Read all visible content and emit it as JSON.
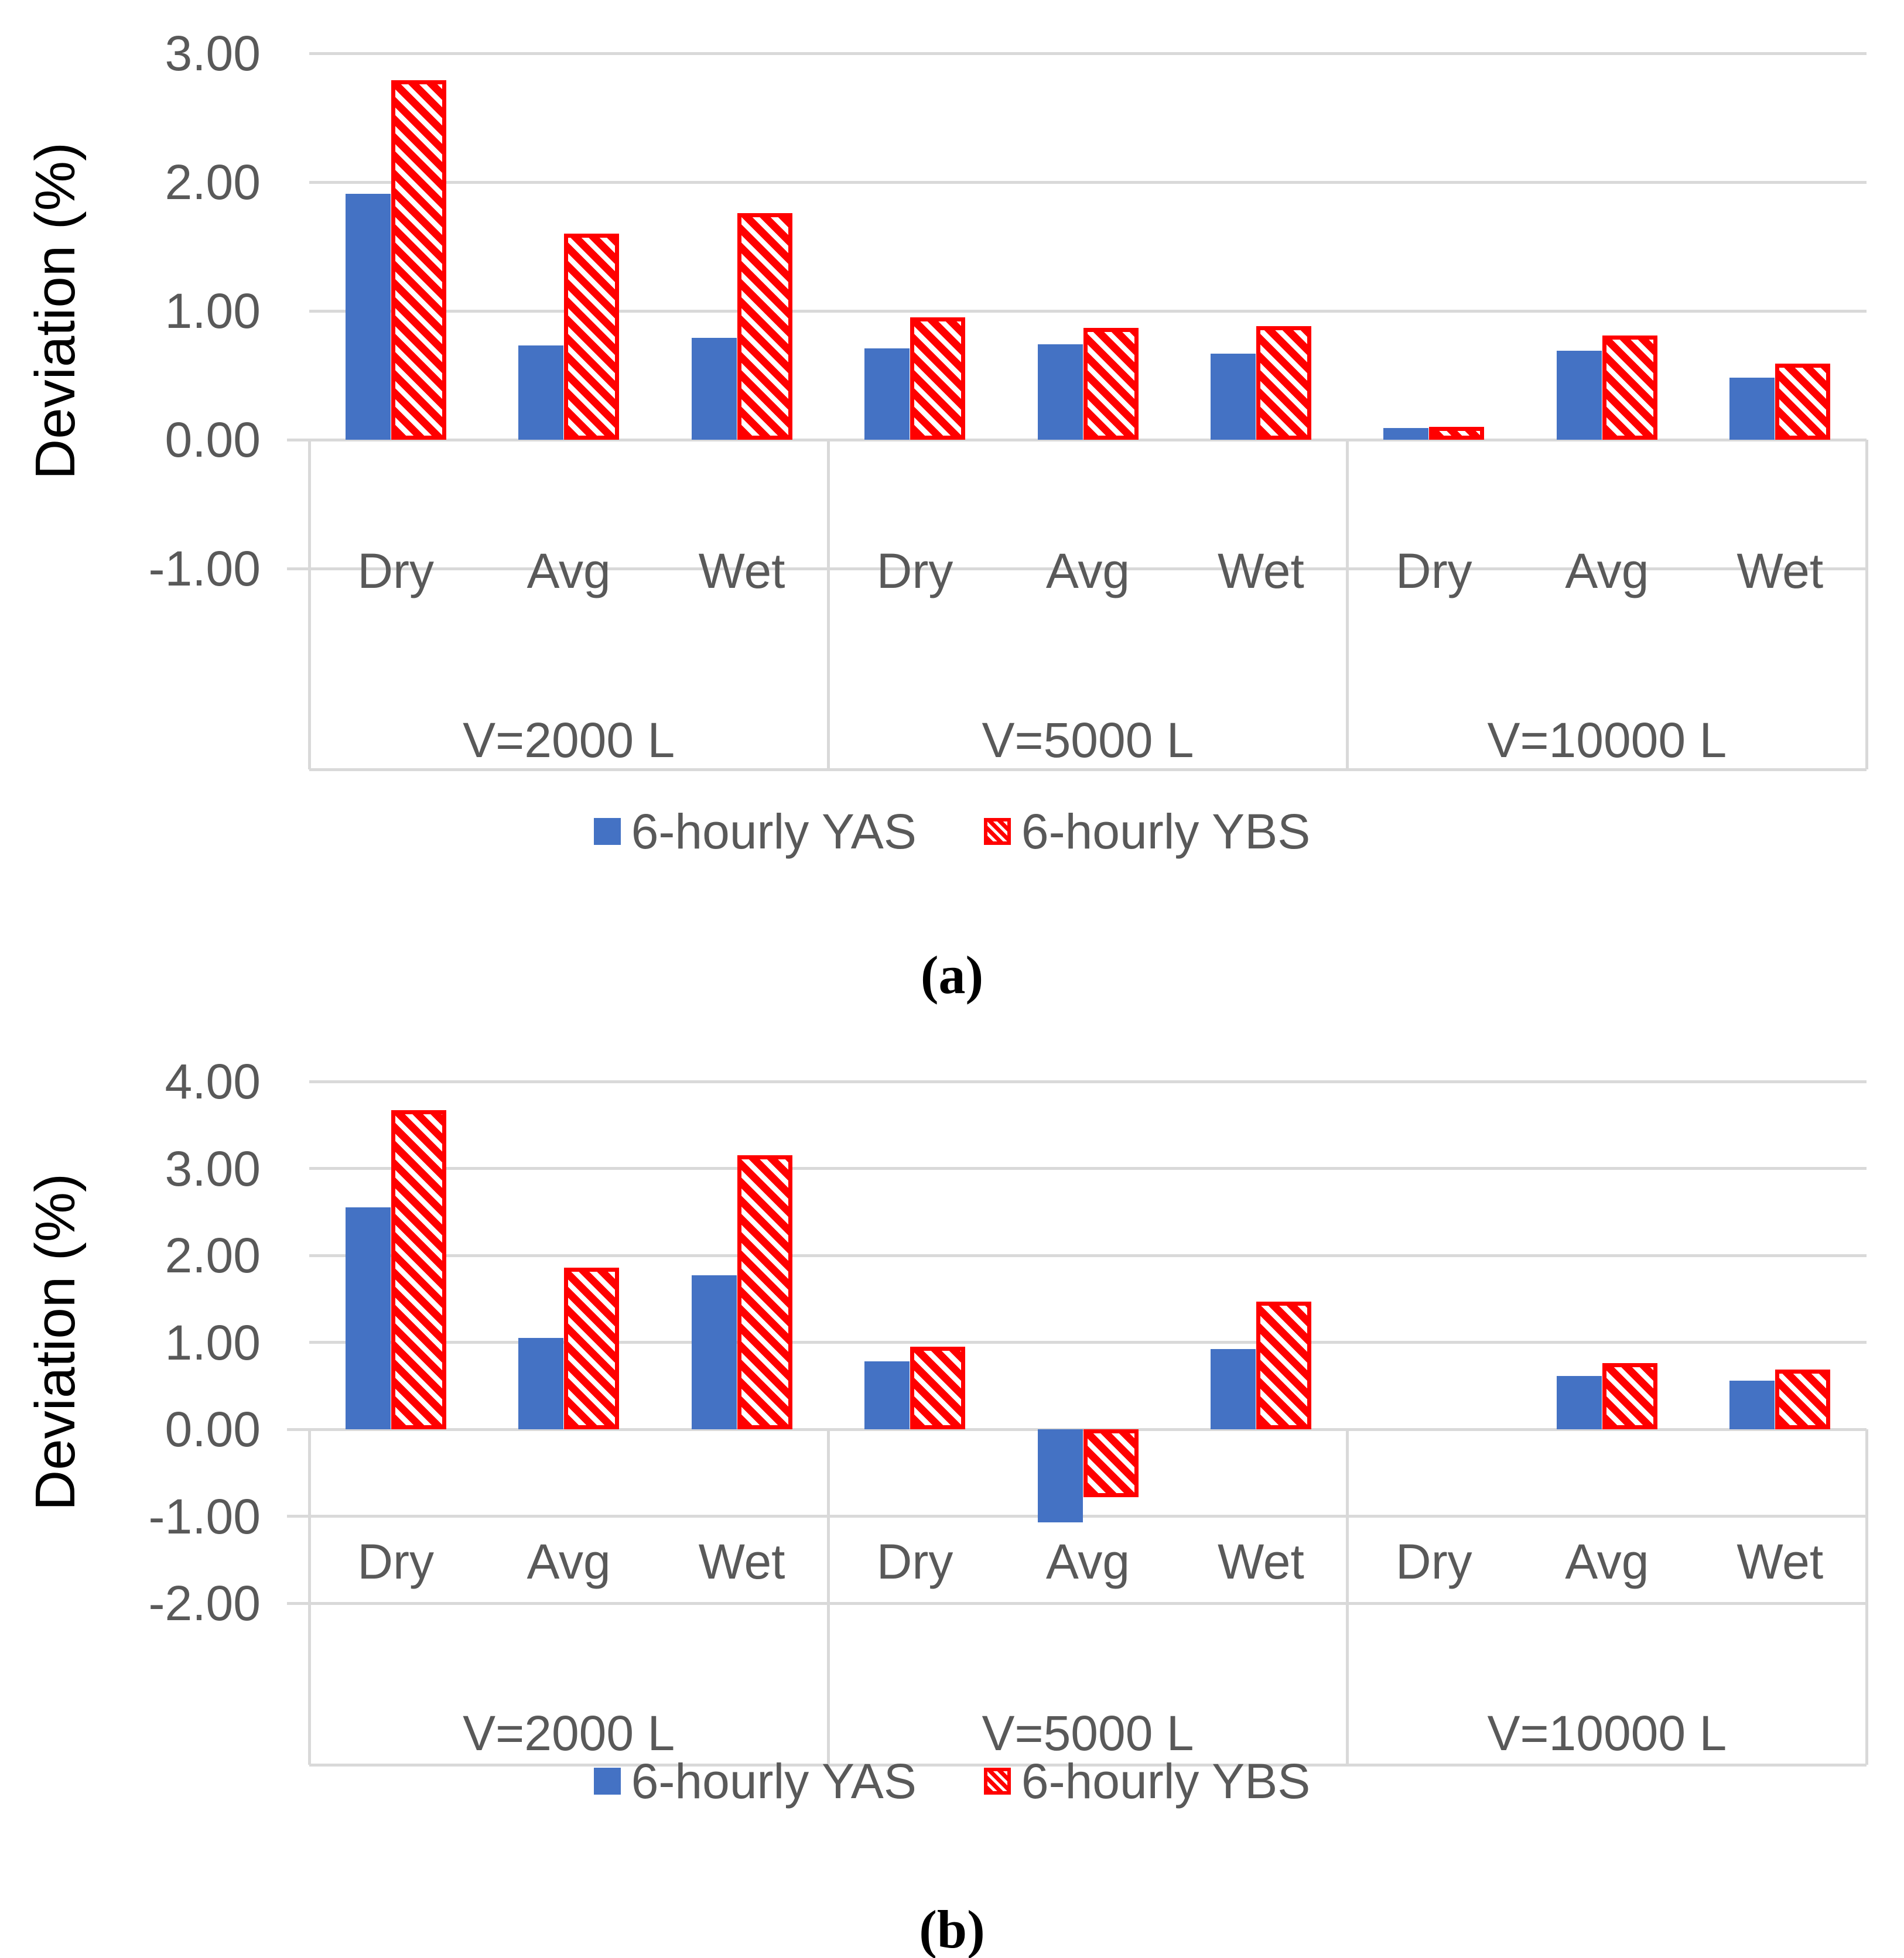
{
  "colors": {
    "yas": "#4472C4",
    "ybs": "#FF0000",
    "grid": "#D9D9D9",
    "axis_text": "#595959",
    "ylabel_text": "#000000",
    "background": "#FFFFFF"
  },
  "chart_data": [
    {
      "type": "bar",
      "panel": "a",
      "caption": "(a)",
      "ylabel": "Deviation (%)",
      "ylim": [
        -1,
        3
      ],
      "ytick_labels": [
        "3.00",
        "2.00",
        "1.00",
        "0.00",
        "-1.00"
      ],
      "ytick_values": [
        3,
        2,
        1,
        0,
        -1
      ],
      "grid": true,
      "legend_position": "bottom",
      "group_labels": [
        "V=2000 L",
        "V=5000 L",
        "V=10000 L"
      ],
      "category_labels": [
        "Dry",
        "Avg",
        "Wet"
      ],
      "series": [
        {
          "name": "6-hourly YAS",
          "color": "#4472C4",
          "pattern": "solid",
          "values": [
            [
              1.91,
              0.73,
              0.79
            ],
            [
              0.71,
              0.74,
              0.67
            ],
            [
              0.09,
              0.69,
              0.48
            ]
          ]
        },
        {
          "name": "6-hourly YBS",
          "color": "#FF0000",
          "pattern": "diagonal-hatch",
          "values": [
            [
              2.79,
              1.6,
              1.76
            ],
            [
              0.95,
              0.87,
              0.88
            ],
            [
              0.1,
              0.81,
              0.59
            ]
          ]
        }
      ]
    },
    {
      "type": "bar",
      "panel": "b",
      "caption": "(b)",
      "ylabel": "Deviation (%)",
      "ylim": [
        -2,
        4
      ],
      "ytick_labels": [
        "4.00",
        "3.00",
        "2.00",
        "1.00",
        "0.00",
        "-1.00",
        "-2.00"
      ],
      "ytick_values": [
        4,
        3,
        2,
        1,
        0,
        -1,
        -2
      ],
      "grid": true,
      "legend_position": "bottom",
      "group_labels": [
        "V=2000 L",
        "V=5000 L",
        "V=10000 L"
      ],
      "category_labels": [
        "Dry",
        "Avg",
        "Wet"
      ],
      "series": [
        {
          "name": "6-hourly YAS",
          "color": "#4472C4",
          "pattern": "solid",
          "values": [
            [
              2.55,
              1.05,
              1.77
            ],
            [
              0.78,
              -1.07,
              0.92
            ],
            [
              0.0,
              0.61,
              0.56
            ]
          ]
        },
        {
          "name": "6-hourly YBS",
          "color": "#FF0000",
          "pattern": "diagonal-hatch",
          "values": [
            [
              3.67,
              1.86,
              3.15
            ],
            [
              0.95,
              -0.78,
              1.47
            ],
            [
              0.0,
              0.76,
              0.69
            ]
          ]
        }
      ]
    }
  ]
}
